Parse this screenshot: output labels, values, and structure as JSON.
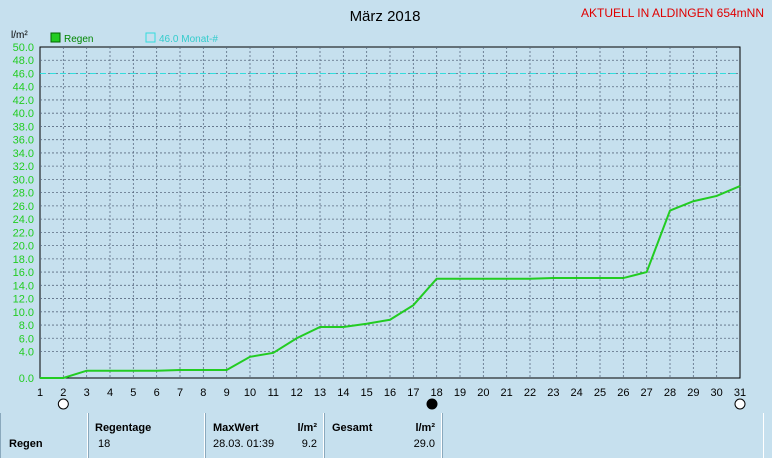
{
  "header": {
    "station_label": "AKTUELL IN ALDINGEN 654mNN",
    "station_color": "#e00000"
  },
  "chart_data": {
    "type": "line",
    "title": "März 2018",
    "ylabel": "l/m²",
    "xlabel": "",
    "ylim": [
      0,
      50
    ],
    "xlim": [
      1,
      31
    ],
    "yticks": [
      "0.0",
      "4.0",
      "6.0",
      "8.0",
      "10.0",
      "12.0",
      "14.0",
      "16.0",
      "18.0",
      "20.0",
      "22.0",
      "24.0",
      "26.0",
      "28.0",
      "30.0",
      "32.0",
      "34.0",
      "36.0",
      "38.0",
      "40.0",
      "42.0",
      "44.0",
      "46.0",
      "48.0",
      "50.0"
    ],
    "xticks": [
      "1",
      "2",
      "3",
      "4",
      "5",
      "6",
      "7",
      "8",
      "9",
      "10",
      "11",
      "12",
      "13",
      "14",
      "15",
      "16",
      "17",
      "18",
      "19",
      "20",
      "21",
      "22",
      "23",
      "24",
      "25",
      "26",
      "27",
      "28",
      "29",
      "30",
      "31"
    ],
    "grid": true,
    "legend_position": "top-left",
    "moon_markers": [
      {
        "day": 2,
        "phase": "full-moon"
      },
      {
        "day": 17.8,
        "phase": "new-moon"
      },
      {
        "day": 31,
        "phase": "full-moon"
      }
    ],
    "series": [
      {
        "name": "Regen",
        "color": "#22cc22",
        "x": [
          1,
          2,
          3,
          4,
          5,
          6,
          7,
          8,
          9,
          10,
          11,
          12,
          13,
          14,
          15,
          16,
          17,
          18,
          19,
          20,
          21,
          22,
          23,
          24,
          25,
          26,
          27,
          28,
          29,
          30,
          31
        ],
        "values": [
          0.0,
          0.0,
          1.1,
          1.1,
          1.1,
          1.1,
          1.2,
          1.2,
          1.2,
          3.2,
          3.8,
          6.0,
          7.7,
          7.7,
          8.2,
          8.8,
          11.0,
          15.0,
          15.0,
          15.0,
          15.0,
          15.0,
          15.1,
          15.1,
          15.1,
          15.1,
          16.0,
          25.3,
          26.7,
          27.5,
          29.0
        ]
      },
      {
        "name": "46.0 Monat-#",
        "color": "#33dddd",
        "constant": 46.0,
        "style": "dashed"
      }
    ]
  },
  "table": {
    "row_label": "Regen",
    "regentage_header": "Regentage",
    "regentage_value": "18",
    "maxwert_header": "MaxWert",
    "maxwert_unit": "l/m²",
    "maxwert_date": "28.03.  01:39",
    "maxwert_value": "9.2",
    "gesamt_header": "Gesamt",
    "gesamt_unit": "l/m²",
    "gesamt_value": "29.0"
  }
}
